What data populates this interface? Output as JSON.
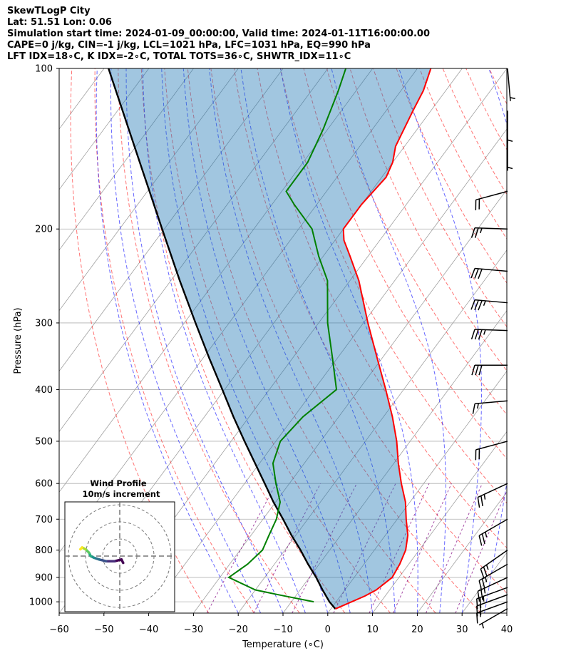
{
  "header": {
    "line1": "SkewTLogP City",
    "line2": "Lat: 51.51   Lon: 0.06",
    "line3": "Simulation start time: 2024-01-09_00:00:00, Valid time: 2024-01-11T16:00:00.00",
    "line4": "CAPE=0 j/kg, CIN=-1 j/kg, LCL=1021 hPa, LFC=1031 hPa, EQ=990 hPa",
    "line5": "LFT IDX=18∘C, K IDX=-2∘C, TOTAL TOTS=36∘C, SHWTR_IDX=11∘C"
  },
  "colors": {
    "temperature": "#ff0000",
    "dewpoint": "#008000",
    "parcel": "#000000",
    "cape_fill": "#1f77b4",
    "dry_adiabat": "#ff0000",
    "moist_adiabat": "#0000ff",
    "mixing_ratio": "#800080",
    "isotherm": "#808080"
  },
  "chart_data": [
    {
      "type": "line",
      "subtype": "skew-T log-P",
      "xlabel": "Temperature (∘C)",
      "ylabel": "Pressure (hPa)",
      "xlim": [
        -60,
        40
      ],
      "ylim": [
        1050,
        100
      ],
      "y_scale": "log",
      "x_ticks": [
        -60,
        -50,
        -40,
        -30,
        -20,
        -10,
        0,
        10,
        20,
        30,
        40
      ],
      "y_ticks": [
        100,
        200,
        300,
        400,
        500,
        600,
        700,
        800,
        900,
        1000
      ],
      "grid": true,
      "series": [
        {
          "key": "temperature",
          "points": [
            [
              1031,
              1
            ],
            [
              1000,
              3.5
            ],
            [
              975,
              5.5
            ],
            [
              950,
              7
            ],
            [
              900,
              8.5
            ],
            [
              850,
              8
            ],
            [
              800,
              7
            ],
            [
              750,
              5
            ],
            [
              700,
              2
            ],
            [
              650,
              -1
            ],
            [
              600,
              -5
            ],
            [
              550,
              -9
            ],
            [
              500,
              -13
            ],
            [
              450,
              -18
            ],
            [
              400,
              -24
            ],
            [
              350,
              -31
            ],
            [
              300,
              -39
            ],
            [
              250,
              -48
            ],
            [
              225,
              -54
            ],
            [
              210,
              -58
            ],
            [
              200,
              -60
            ],
            [
              180,
              -60
            ],
            [
              160,
              -59
            ],
            [
              150,
              -60
            ],
            [
              140,
              -62
            ],
            [
              120,
              -64
            ],
            [
              110,
              -65
            ],
            [
              100,
              -67
            ]
          ]
        },
        {
          "key": "dewpoint",
          "points": [
            [
              1000,
              -5
            ],
            [
              970,
              -14
            ],
            [
              950,
              -20
            ],
            [
              900,
              -28
            ],
            [
              850,
              -26
            ],
            [
              800,
              -25
            ],
            [
              750,
              -26
            ],
            [
              700,
              -27
            ],
            [
              650,
              -29
            ],
            [
              600,
              -33
            ],
            [
              550,
              -37
            ],
            [
              500,
              -39
            ],
            [
              450,
              -38
            ],
            [
              400,
              -35
            ],
            [
              350,
              -41
            ],
            [
              300,
              -48
            ],
            [
              250,
              -55
            ],
            [
              225,
              -61
            ],
            [
              200,
              -67
            ],
            [
              180,
              -75
            ],
            [
              170,
              -79
            ],
            [
              150,
              -79
            ],
            [
              130,
              -81
            ],
            [
              110,
              -84
            ],
            [
              100,
              -86
            ]
          ]
        },
        {
          "key": "parcel",
          "points": [
            [
              1031,
              1
            ],
            [
              1000,
              -1.5
            ],
            [
              950,
              -5
            ],
            [
              900,
              -8.5
            ],
            [
              850,
              -12.5
            ],
            [
              800,
              -16.5
            ],
            [
              750,
              -21
            ],
            [
              700,
              -25.5
            ],
            [
              650,
              -30.5
            ],
            [
              600,
              -35.5
            ],
            [
              550,
              -41
            ],
            [
              500,
              -47
            ],
            [
              450,
              -53.5
            ],
            [
              400,
              -60.5
            ],
            [
              350,
              -68.5
            ],
            [
              300,
              -77.5
            ],
            [
              250,
              -88
            ],
            [
              200,
              -100.5
            ],
            [
              150,
              -116.5
            ],
            [
              100,
              -139
            ]
          ]
        }
      ]
    },
    {
      "type": "line",
      "subtype": "hodograph",
      "title": "Wind Profile",
      "subtitle": "10m/s increment",
      "u": [
        2,
        1,
        -3,
        -8,
        -12,
        -15,
        -17,
        -18,
        -20,
        -22,
        -23
      ],
      "v": [
        -4,
        -2,
        -3,
        -3,
        -2,
        -1,
        0,
        2,
        4,
        5,
        4
      ]
    }
  ],
  "barbs": [
    {
      "p": 1030,
      "speed": 5,
      "dir": 240
    },
    {
      "p": 1000,
      "speed": 15,
      "dir": 250
    },
    {
      "p": 970,
      "speed": 20,
      "dir": 250
    },
    {
      "p": 940,
      "speed": 25,
      "dir": 250
    },
    {
      "p": 900,
      "speed": 25,
      "dir": 245
    },
    {
      "p": 850,
      "speed": 25,
      "dir": 240
    },
    {
      "p": 800,
      "speed": 25,
      "dir": 235
    },
    {
      "p": 700,
      "speed": 25,
      "dir": 240
    },
    {
      "p": 600,
      "speed": 25,
      "dir": 245
    },
    {
      "p": 500,
      "speed": 20,
      "dir": 255
    },
    {
      "p": 420,
      "speed": 15,
      "dir": 265
    },
    {
      "p": 360,
      "speed": 30,
      "dir": 270
    },
    {
      "p": 310,
      "speed": 35,
      "dir": 272
    },
    {
      "p": 275,
      "speed": 35,
      "dir": 275
    },
    {
      "p": 240,
      "speed": 30,
      "dir": 275
    },
    {
      "p": 200,
      "speed": 25,
      "dir": 272
    },
    {
      "p": 170,
      "speed": 20,
      "dir": 255
    },
    {
      "p": 135,
      "speed": 5,
      "dir": 180
    },
    {
      "p": 120,
      "speed": 5,
      "dir": 180
    },
    {
      "p": 100,
      "speed": 5,
      "dir": 175
    }
  ]
}
